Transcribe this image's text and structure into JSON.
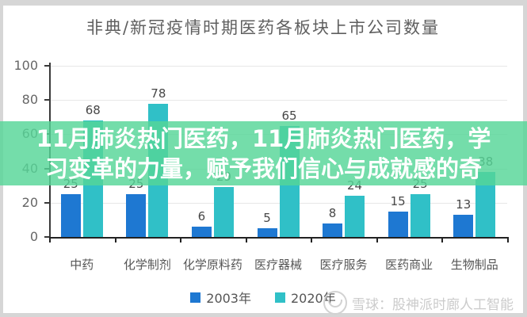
{
  "overlay": {
    "line1": "11月肺炎热门医药，11月肺炎热门医药，学",
    "line2": "习变革的力量，赋予我们信心与成就感的奇"
  },
  "watermark": {
    "source": "雪球：股神派时廊人工智能"
  },
  "colors": {
    "series_2003": "#1e78d2",
    "series_2020": "#30c0c7",
    "overlay_band": "#56d697"
  },
  "chart_data": {
    "type": "bar",
    "title": "非典/新冠疫情时期医药各板块上市公司数量",
    "categories": [
      "中药",
      "化学制剂",
      "化学原料药",
      "医疗器械",
      "医疗服务",
      "医药商业",
      "生物制品"
    ],
    "series": [
      {
        "name": "2003年",
        "color": "#1e78d2",
        "values": [
          25,
          25,
          6,
          5,
          8,
          15,
          13
        ]
      },
      {
        "name": "2020年",
        "color": "#30c0c7",
        "values": [
          68,
          78,
          29,
          65,
          24,
          25,
          38
        ]
      }
    ],
    "xlabel": "",
    "ylabel": "",
    "ylim": [
      0,
      100
    ],
    "yticks": [
      0,
      20,
      40,
      60,
      80,
      100
    ],
    "grid": true,
    "legend_position": "bottom",
    "data_labels": true
  }
}
